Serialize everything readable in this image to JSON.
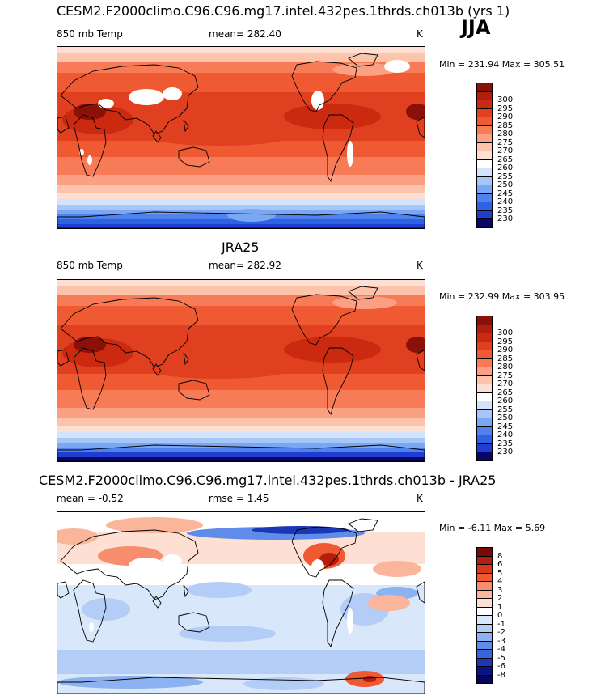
{
  "season": "JJA",
  "colors": {
    "warm": [
      "#fde0d3",
      "#fcc4ab",
      "#fca083",
      "#f87b58",
      "#ef5a33",
      "#e0401f",
      "#cc2a10",
      "#b01e0d",
      "#8b1007"
    ],
    "cool": [
      "#08066b",
      "#1a1aa8",
      "#1f3dd1",
      "#2d62e3",
      "#4f82ee",
      "#7aa7f4",
      "#a6c6f8",
      "#d3e3fb",
      "#ffffff"
    ],
    "land_outline": "#000000"
  },
  "panels": [
    {
      "title": "CESM2.F2000climo.C96.C96.mg17.intel.432pes.1thrds.ch013b (yrs 1)",
      "left_label": "850 mb Temp",
      "center_label": "mean= 282.40",
      "units": "K",
      "minmax": "Min = 231.94 Max = 305.51",
      "levels": [
        "300",
        "295",
        "290",
        "285",
        "280",
        "275",
        "270",
        "265",
        "260",
        "255",
        "250",
        "245",
        "240",
        "235",
        "230"
      ],
      "kind": "model"
    },
    {
      "title": "JRA25",
      "left_label": "850 mb Temp",
      "center_label": "mean= 282.92",
      "units": "K",
      "minmax": "Min = 232.99 Max = 303.95",
      "levels": [
        "300",
        "295",
        "290",
        "285",
        "280",
        "275",
        "270",
        "265",
        "260",
        "255",
        "250",
        "245",
        "240",
        "235",
        "230"
      ],
      "kind": "obs"
    },
    {
      "title": "CESM2.F2000climo.C96.C96.mg17.intel.432pes.1thrds.ch013b - JRA25",
      "left_label": "mean =  -0.52",
      "center_label": "rmse =   1.45",
      "units": "K",
      "minmax": "Min =  -6.11 Max =   5.69",
      "levels": [
        "8",
        "6",
        "5",
        "4",
        "3",
        "2",
        "1",
        "0",
        "-1",
        "-2",
        "-3",
        "-4",
        "-5",
        "-6",
        "-8"
      ],
      "kind": "diff"
    }
  ]
}
